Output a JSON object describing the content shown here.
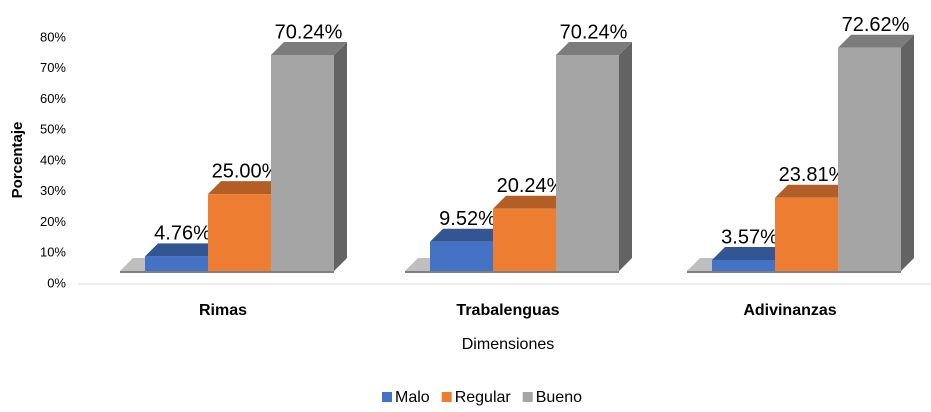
{
  "chart_data": {
    "type": "bar3d",
    "categories": [
      "Rimas",
      "Trabalenguas",
      "Adivinanzas"
    ],
    "series": [
      {
        "name": "Malo",
        "color": "#4472c4",
        "values": [
          4.76,
          9.52,
          3.57
        ],
        "value_labels": [
          "4.76%",
          "9.52%",
          "3.57%"
        ]
      },
      {
        "name": "Regular",
        "color": "#ed7d31",
        "values": [
          25.0,
          20.24,
          23.81
        ],
        "value_labels": [
          "25.00%",
          "20.24%",
          "23.81%"
        ]
      },
      {
        "name": "Bueno",
        "color": "#a5a5a5",
        "values": [
          70.24,
          70.24,
          72.62
        ],
        "value_labels": [
          "70.24%",
          "70.24%",
          "72.62%"
        ]
      }
    ],
    "ylim": [
      0,
      80
    ],
    "yticks": [
      {
        "value": 0,
        "label": "0%"
      },
      {
        "value": 10,
        "label": "10%"
      },
      {
        "value": 20,
        "label": "20%"
      },
      {
        "value": 30,
        "label": "30%"
      },
      {
        "value": 40,
        "label": "40%"
      },
      {
        "value": 50,
        "label": "50%"
      },
      {
        "value": 60,
        "label": "60%"
      },
      {
        "value": 70,
        "label": "70%"
      },
      {
        "value": 80,
        "label": "80%"
      }
    ],
    "ylabel": "Porcentaje",
    "xlabel": "Dimensiones",
    "legend": "bottom"
  }
}
